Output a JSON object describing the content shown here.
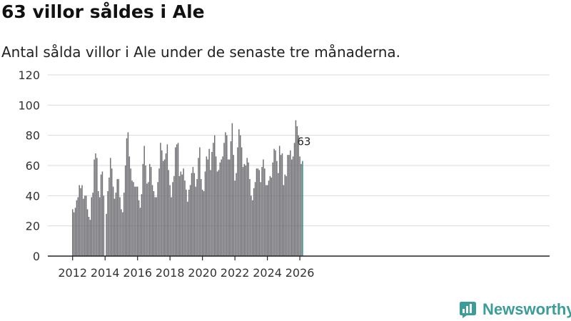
{
  "title": "63 villor såldes i Ale",
  "subtitle": "Antal sålda villor i Ale under de senaste tre månaderna.",
  "brand": "Newsworthy",
  "colors": {
    "bar": "#6e6d72",
    "highlight": "#2b8b87",
    "grid": "#d9d9d9",
    "axis": "#222222",
    "brand": "#3b9c9a"
  },
  "chart_data": {
    "type": "bar",
    "title": "63 villor såldes i Ale",
    "subtitle": "Antal sålda villor i Ale under de senaste tre månaderna.",
    "xlabel": "",
    "ylabel": "",
    "ylim": [
      0,
      120
    ],
    "y_ticks": [
      0,
      20,
      40,
      60,
      80,
      100,
      120
    ],
    "x_ticks": [
      "2012",
      "2014",
      "2016",
      "2018",
      "2020",
      "2022",
      "2024",
      "2026"
    ],
    "x_start": "2012-01",
    "frequency": "monthly",
    "grid": true,
    "values": [
      31,
      29,
      32,
      37,
      39,
      47,
      45,
      47,
      38,
      40,
      40,
      31,
      26,
      24,
      39,
      42,
      64,
      68,
      65,
      43,
      39,
      54,
      56,
      40,
      0,
      28,
      43,
      52,
      65,
      58,
      46,
      38,
      42,
      51,
      51,
      39,
      31,
      29,
      42,
      60,
      78,
      82,
      66,
      58,
      50,
      49,
      46,
      46,
      46,
      37,
      32,
      41,
      61,
      73,
      60,
      48,
      49,
      61,
      59,
      47,
      43,
      39,
      39,
      49,
      58,
      75,
      70,
      63,
      64,
      68,
      74,
      57,
      47,
      39,
      49,
      53,
      72,
      74,
      75,
      53,
      56,
      54,
      58,
      50,
      44,
      36,
      44,
      47,
      55,
      59,
      55,
      46,
      51,
      65,
      72,
      51,
      44,
      43,
      56,
      66,
      64,
      71,
      57,
      69,
      75,
      80,
      66,
      56,
      57,
      62,
      64,
      66,
      75,
      82,
      80,
      64,
      64,
      76,
      88,
      67,
      50,
      55,
      72,
      84,
      80,
      72,
      59,
      61,
      60,
      65,
      62,
      51,
      40,
      37,
      45,
      49,
      58,
      58,
      57,
      49,
      59,
      64,
      58,
      47,
      47,
      50,
      53,
      52,
      62,
      71,
      70,
      63,
      55,
      73,
      67,
      68,
      47,
      54,
      53,
      67,
      67,
      70,
      64,
      66,
      75,
      90,
      86,
      80,
      66,
      61,
      63
    ],
    "highlight_last": true,
    "annotation": {
      "label": "63",
      "value": 63
    }
  }
}
